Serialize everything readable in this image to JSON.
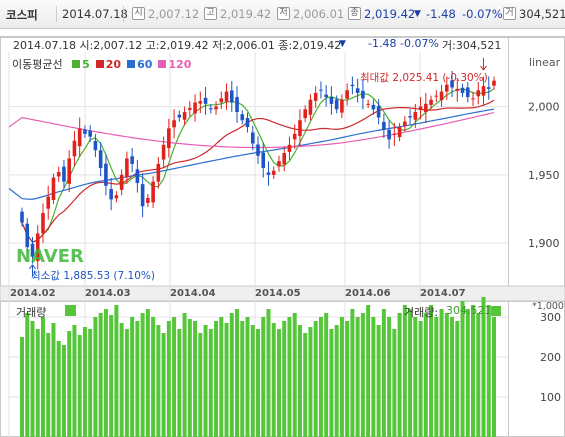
{
  "topbar": {
    "name": "코스피",
    "date": "2014.07.18",
    "open_icon": "시",
    "open": "2,007.12",
    "high_icon": "고",
    "high": "2,019.42",
    "low_icon": "저",
    "low": "2,006.01",
    "close_icon": "종",
    "close": "2,019.42",
    "change_icon": "triangle-down-icon",
    "change": "-1.48",
    "pct": "-0.07%",
    "volume_icon": "거",
    "volume": "304,521"
  },
  "infoline": "2014.07.18 시:2,007.12 고:2,019.42 저:2,006.01 종:2,019.42",
  "infoline_change": "-1.48",
  "infoline_pct": "-0.07%",
  "infoline_volume": "거:304,521",
  "scale_label": "linear",
  "ma_legend": {
    "title": "이동평균선",
    "items": [
      {
        "label": "5",
        "color": "#48b033"
      },
      {
        "label": "20",
        "color": "#d0282b"
      },
      {
        "label": "60",
        "color": "#2a6fd0"
      },
      {
        "label": "120",
        "color": "#e85fb4"
      }
    ]
  },
  "max_annotation": "최대값 2,025.41 (-0.30%)",
  "min_annotation": "최소값 1,885.53 (7.10%)",
  "watermark": "NAVER",
  "volume_panel": {
    "title": "거래량",
    "last_label": "거래량:",
    "last_value": "304,521",
    "unit": "*1,000",
    "color": "#55c63a"
  },
  "colors": {
    "up": "#e0211c",
    "down": "#1d56c4"
  },
  "chart_data": [
    {
      "type": "candlestick",
      "title": "코스피",
      "xlabel": "",
      "ylabel": "",
      "x_ticks": [
        "2014.02",
        "2014.03",
        "2014.04",
        "2014.05",
        "2014.06",
        "2014.07"
      ],
      "y_ticks": [
        1900,
        1950,
        2000
      ],
      "ylim": [
        1870,
        2040
      ],
      "grid": true,
      "series": [
        {
          "name": "5",
          "note": "moving average"
        },
        {
          "name": "20",
          "note": "moving average"
        },
        {
          "name": "60",
          "note": "moving average"
        },
        {
          "name": "120",
          "note": "moving average"
        }
      ],
      "approx_close": [
        1915,
        1897,
        1890,
        1907,
        1922,
        1934,
        1948,
        1952,
        1945,
        1962,
        1975,
        1984,
        1980,
        1978,
        1968,
        1955,
        1942,
        1932,
        1935,
        1950,
        1962,
        1958,
        1944,
        1927,
        1933,
        1945,
        1958,
        1972,
        1984,
        1990,
        1992,
        1996,
        1999,
        2003,
        2004,
        2002,
        1998,
        2000,
        2006,
        2011,
        2003,
        1996,
        1990,
        1985,
        1973,
        1964,
        1955,
        1950,
        1953,
        1960,
        1966,
        1972,
        1980,
        1990,
        1998,
        2005,
        2010,
        2012,
        2007,
        2002,
        1998,
        2005,
        2012,
        2015,
        2010,
        2006,
        2002,
        1998,
        1992,
        1983,
        1976,
        1980,
        1985,
        1989,
        1992,
        1996,
        2000,
        2002,
        2005,
        2008,
        2011,
        2016,
        2014,
        2013,
        2010,
        2007,
        2006,
        2012,
        2015,
        2013,
        2019
      ],
      "max_value": 2025.41,
      "min_value": 1885.53
    },
    {
      "type": "bar",
      "title": "거래량",
      "unit": "*1,000",
      "y_ticks": [
        100,
        200,
        300
      ],
      "ylim": [
        0,
        340
      ],
      "approx_values": [
        250,
        310,
        290,
        270,
        300,
        260,
        285,
        240,
        230,
        265,
        280,
        255,
        275,
        270,
        300,
        310,
        320,
        305,
        330,
        285,
        270,
        300,
        290,
        310,
        320,
        300,
        280,
        260,
        290,
        300,
        270,
        310,
        295,
        290,
        260,
        280,
        270,
        290,
        300,
        285,
        310,
        320,
        290,
        300,
        280,
        270,
        300,
        320,
        285,
        270,
        290,
        300,
        310,
        280,
        260,
        275,
        290,
        300,
        310,
        270,
        280,
        300,
        290,
        320,
        300,
        310,
        330,
        300,
        280,
        320,
        300,
        270,
        310,
        330,
        320,
        300,
        290,
        310,
        330,
        300,
        320,
        310,
        300,
        290,
        340,
        320,
        330,
        310,
        350,
        330,
        300
      ],
      "last_value": 304.521
    }
  ]
}
